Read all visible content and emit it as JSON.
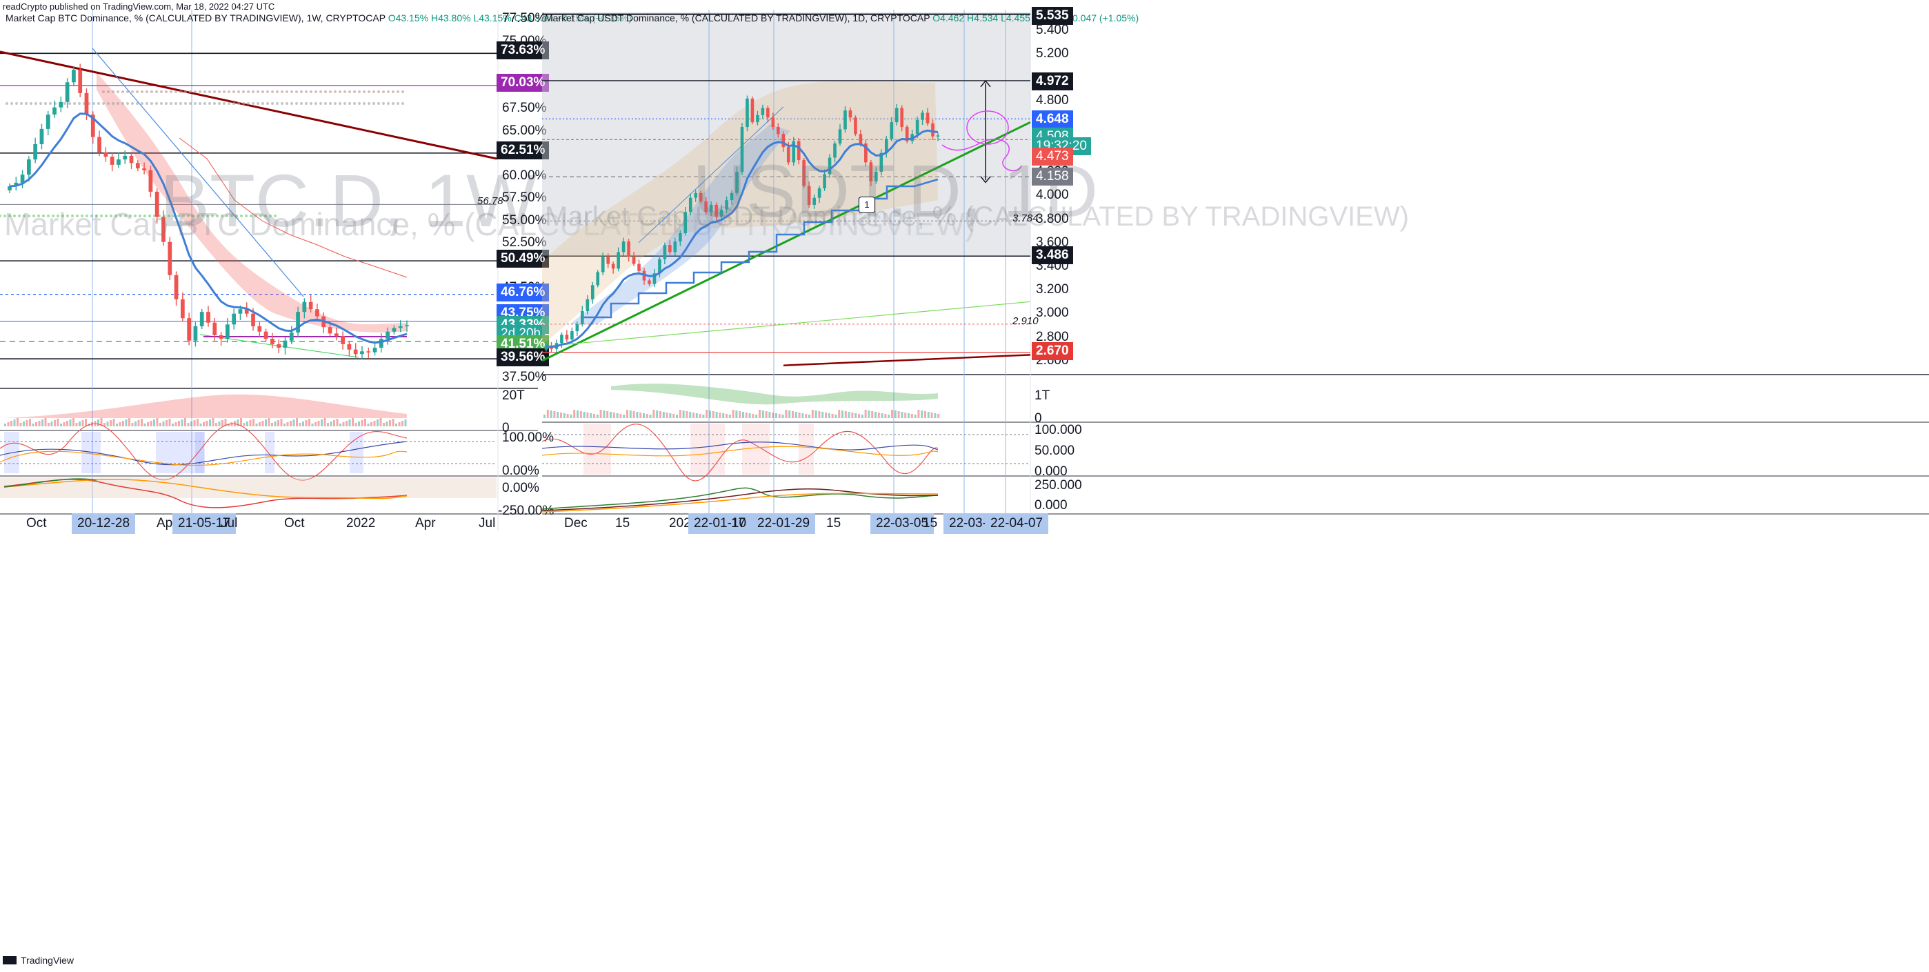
{
  "header": {
    "publisher_note": "readCrypto published on TradingView.com, Mar 18, 2022 04:27 UTC"
  },
  "footer": {
    "brand": "TradingView"
  },
  "left_chart": {
    "legend": "Market Cap BTC Dominance, % (CALCULATED BY TRADINGVIEW), 1W, CRYPTOCAP",
    "ohlc": "O43.15% H43.80% L43.15% C43.33% +0.15% (+0.35%)",
    "watermark_symbol": "BTC.D, 1W",
    "watermark_desc": "Market Cap BTC Dominance, % (CALCULATED BY TRADINGVIEW)",
    "price_ticks": [
      "77.50%",
      "75.00%",
      "67.50%",
      "65.00%",
      "60.00%",
      "57.50%",
      "55.00%",
      "52.50%",
      "47.50%",
      "45.00%",
      "37.50%"
    ],
    "tags": {
      "t7363": "73.63%",
      "t7003": "70.03%",
      "t6251": "62.51%",
      "t5049": "50.49%",
      "t4676": "46.76%",
      "t4375": "43.75%",
      "t4333": "43.33%",
      "t_countdown": "2d 20h",
      "t4151": "41.51%",
      "t3956": "39.56%"
    },
    "line_label_5678": "56.78",
    "time_ticks": [
      "Oct",
      "Apr",
      "Jul",
      "Oct",
      "2022",
      "Apr",
      "Jul"
    ],
    "date_tags": [
      "20-12-28",
      "21-05-17"
    ],
    "volume_axis": [
      "20T",
      "0"
    ],
    "osc_axis": [
      "100.00%",
      "0.00%"
    ],
    "macd_axis": [
      "0.00%",
      "-250.00%"
    ]
  },
  "right_chart": {
    "legend": "Market Cap USDT Dominance, % (CALCULATED BY TRADINGVIEW), 1D, CRYPTOCAP",
    "ohlc": "O4.462 H4.534 L4.455 C4.508 +0.047 (+1.05%)",
    "watermark_symbol": "USDT.D, 1D",
    "watermark_desc": "Market Cap USDT Dominance, % (CALCULATED BY TRADINGVIEW)",
    "price_ticks": [
      "5.400",
      "5.200",
      "4.800",
      "4.600",
      "4.200",
      "4.000",
      "3.800",
      "3.600",
      "3.400",
      "3.200",
      "3.000",
      "2.800",
      "2.600"
    ],
    "tags": {
      "t5535": "5.535",
      "t4972": "4.972",
      "t4648": "4.648",
      "t4508": "4.508",
      "t_countdown": "19:32:20",
      "t4473": "4.473",
      "t4158": "4.158",
      "t3486": "3.486",
      "t2670": "2.670"
    },
    "line_label_3784": "3.784",
    "line_label_2910": "2.910",
    "wave_label": "1",
    "time_ticks": [
      "Dec",
      "15",
      "2022",
      "17",
      "15",
      "15"
    ],
    "date_tags": [
      "22-01-10",
      "22-01-29",
      "22-03-05",
      "22-03-26",
      "22-04-07"
    ],
    "volume_axis": [
      "1T",
      "0"
    ],
    "osc_axis": [
      "100.000",
      "50.000",
      "0.000"
    ],
    "macd_axis": [
      "250.000",
      "0.000"
    ]
  },
  "colors": {
    "up": "#26a69a",
    "down": "#ef5350",
    "trend_dark_red": "#8b0000",
    "support_green": "#1aa31a",
    "blue_line": "#3f7fd6",
    "magenta": "#e040fb"
  },
  "chart_data": [
    {
      "type": "line",
      "title": "Market Cap BTC Dominance, % (CALCULATED BY TRADINGVIEW), 1W, CRYPTOCAP",
      "ylabel": "",
      "ylim": [
        36.5,
        78.5
      ],
      "x_start": "2020-09",
      "x_end": "2022-07",
      "series": [
        {
          "values": [
            58.8,
            59.2,
            60.1,
            61.8,
            63.5,
            65.2,
            66.8,
            67.6,
            68.2,
            70.4,
            71.8,
            69.2,
            66.8,
            64.3,
            62.6,
            62.1,
            61.2,
            61.8,
            62.2,
            61.4,
            60.8,
            60.6,
            58.2,
            55.4,
            52.6,
            48.9,
            46.2,
            44.1,
            41.6,
            43.2,
            44.8,
            43.6,
            42.2,
            41.8,
            43.4,
            44.6,
            45.1,
            44.6,
            43.2,
            42.6,
            41.8,
            41.2,
            40.8,
            41.6,
            42.5,
            44.8,
            45.9,
            45.1,
            44.3,
            43.1,
            42.4,
            42.1,
            41.2,
            40.6,
            40.1,
            40.4,
            40.3,
            40.8,
            41.8,
            42.6,
            43.0,
            43.2,
            43.33
          ]
        }
      ],
      "horizontal_levels": [
        73.63,
        70.03,
        62.51,
        56.78,
        50.49,
        46.76,
        43.75,
        41.51,
        39.56
      ]
    },
    {
      "type": "line",
      "title": "Market Cap USDT Dominance, % (CALCULATED BY TRADINGVIEW), 1D, CRYPTOCAP",
      "ylabel": "",
      "ylim": [
        2.5,
        5.55
      ],
      "x_start": "2021-11",
      "x_end": "2022-04-07",
      "series": [
        {
          "values": [
            2.72,
            2.7,
            2.75,
            2.82,
            2.78,
            2.85,
            2.91,
            3.02,
            3.12,
            3.24,
            3.35,
            3.48,
            3.42,
            3.38,
            3.52,
            3.61,
            3.48,
            3.42,
            3.36,
            3.28,
            3.25,
            3.34,
            3.46,
            3.58,
            3.52,
            3.61,
            3.68,
            3.86,
            3.98,
            4.02,
            3.95,
            3.86,
            3.92,
            3.82,
            3.88,
            3.96,
            4.02,
            4.2,
            4.58,
            4.82,
            4.62,
            4.68,
            4.74,
            4.66,
            4.58,
            4.52,
            4.41,
            4.28,
            4.46,
            4.3,
            4.08,
            3.92,
            3.98,
            4.06,
            4.18,
            4.32,
            4.44,
            4.56,
            4.72,
            4.66,
            4.52,
            4.44,
            4.28,
            4.12,
            4.2,
            4.36,
            4.48,
            4.62,
            4.74,
            4.58,
            4.46,
            4.52,
            4.64,
            4.7,
            4.61,
            4.5,
            4.508
          ]
        }
      ],
      "horizontal_levels": [
        5.535,
        4.972,
        4.648,
        4.473,
        4.158,
        3.784,
        3.486,
        2.91,
        2.67
      ]
    }
  ]
}
